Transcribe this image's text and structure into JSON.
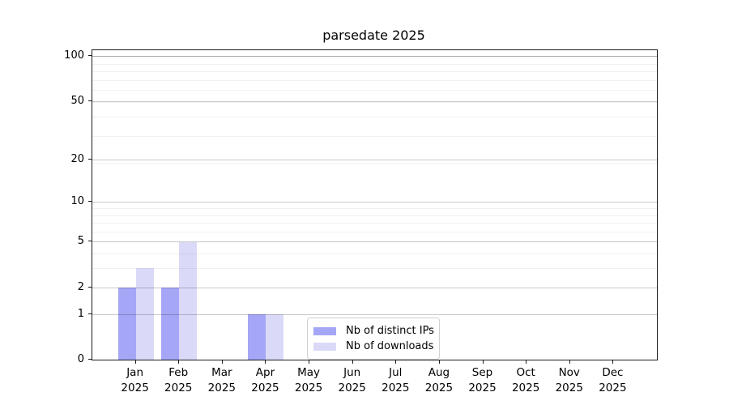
{
  "title": "parsedate 2025",
  "legend": {
    "items": [
      {
        "label": "Nb of distinct IPs",
        "color": "#a6a6f6"
      },
      {
        "label": "Nb of downloads",
        "color": "#dadaf8"
      }
    ]
  },
  "chart_data": {
    "type": "bar",
    "title": "parsedate 2025",
    "x_ticks": [
      {
        "label": "Jan",
        "sublabel": "2025"
      },
      {
        "label": "Feb",
        "sublabel": "2025"
      },
      {
        "label": "Mar",
        "sublabel": "2025"
      },
      {
        "label": "Apr",
        "sublabel": "2025"
      },
      {
        "label": "May",
        "sublabel": "2025"
      },
      {
        "label": "Jun",
        "sublabel": "2025"
      },
      {
        "label": "Jul",
        "sublabel": "2025"
      },
      {
        "label": "Aug",
        "sublabel": "2025"
      },
      {
        "label": "Sep",
        "sublabel": "2025"
      },
      {
        "label": "Oct",
        "sublabel": "2025"
      },
      {
        "label": "Nov",
        "sublabel": "2025"
      },
      {
        "label": "Dec",
        "sublabel": "2025"
      }
    ],
    "series": [
      {
        "name": "Nb of distinct IPs",
        "color": "#a6a6f6",
        "values": [
          2,
          2,
          0,
          1,
          0,
          0,
          0,
          0,
          0,
          0,
          0,
          0
        ]
      },
      {
        "name": "Nb of downloads",
        "color": "#dadaf8",
        "values": [
          3,
          5,
          0,
          1,
          0,
          0,
          0,
          0,
          0,
          0,
          0,
          0
        ]
      }
    ],
    "y_ticks": [
      0,
      1,
      2,
      5,
      10,
      20,
      50,
      100
    ],
    "y_minor_ticks": [
      3,
      4,
      6,
      7,
      8,
      9,
      19,
      29,
      39,
      49,
      59,
      69,
      79,
      89
    ],
    "y_scale": "log10(1+v)",
    "ylim": [
      0,
      110
    ],
    "xlabel": "",
    "ylabel": "",
    "grid": "horizontal",
    "legend_position": "lower center"
  }
}
